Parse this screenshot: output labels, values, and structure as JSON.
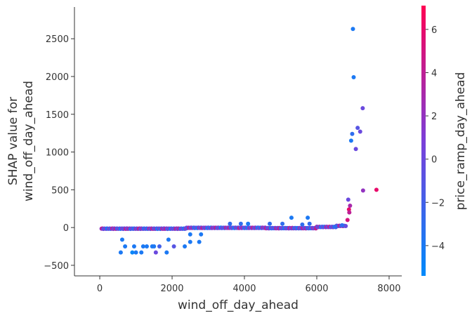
{
  "chart_data": {
    "type": "scatter",
    "title": "",
    "xlabel": "wind_off_day_ahead",
    "ylabel_lines": [
      "SHAP value for",
      "wind_off_day_ahead"
    ],
    "xlim": [
      -700,
      8350
    ],
    "ylim": [
      -640,
      2920
    ],
    "xticks": [
      0,
      2000,
      4000,
      6000,
      8000
    ],
    "xtick_labels": [
      "0",
      "2000",
      "4000",
      "6000",
      "8000"
    ],
    "yticks": [
      -500,
      0,
      500,
      1000,
      1500,
      2000,
      2500
    ],
    "ytick_labels": [
      "−500",
      "0",
      "500",
      "1000",
      "1500",
      "2000",
      "2500"
    ],
    "grid": false,
    "colorbar": {
      "label": "price_ramp_day_ahead",
      "range": [
        -5.4,
        7.1
      ],
      "ticks": [
        -4,
        -2,
        0,
        2,
        4,
        6
      ],
      "tick_labels": [
        "−4",
        "−2",
        "0",
        "2",
        "4",
        "6"
      ],
      "colors": [
        "#008afb",
        "#7b3fd9",
        "#ff0052"
      ]
    },
    "band": {
      "start": 50,
      "end": 6820,
      "step": 25,
      "segments": [
        [
          0,
          2400,
          -15
        ],
        [
          2400,
          4600,
          -4
        ],
        [
          4600,
          6000,
          -8
        ],
        [
          6000,
          6550,
          8
        ],
        [
          6550,
          6820,
          22
        ]
      ]
    },
    "points": [
      [
        580,
        -330,
        -4
      ],
      [
        620,
        -160,
        -4
      ],
      [
        700,
        -250,
        -4
      ],
      [
        900,
        -330,
        -5
      ],
      [
        950,
        -250,
        -4
      ],
      [
        1000,
        -330,
        -4
      ],
      [
        1150,
        -330,
        -4
      ],
      [
        1200,
        -250,
        -4
      ],
      [
        1300,
        -250,
        -4
      ],
      [
        1450,
        -250,
        -4
      ],
      [
        1500,
        -250,
        -4
      ],
      [
        1550,
        -330,
        0
      ],
      [
        1650,
        -250,
        -2
      ],
      [
        1850,
        -330,
        -4
      ],
      [
        1900,
        -160,
        -4
      ],
      [
        2050,
        -250,
        -1
      ],
      [
        2350,
        -250,
        -4
      ],
      [
        2500,
        -190,
        -4
      ],
      [
        2500,
        -90,
        -4
      ],
      [
        2750,
        -190,
        -4
      ],
      [
        2800,
        -90,
        -4
      ],
      [
        3600,
        50,
        -3
      ],
      [
        3900,
        50,
        -3
      ],
      [
        4100,
        50,
        -4
      ],
      [
        4700,
        50,
        -3
      ],
      [
        5050,
        50,
        -3
      ],
      [
        5300,
        130,
        -4
      ],
      [
        5600,
        40,
        -3
      ],
      [
        5750,
        130,
        -4
      ],
      [
        5800,
        50,
        -3
      ],
      [
        6500,
        10,
        -3
      ],
      [
        6700,
        30,
        -3
      ],
      [
        6850,
        100,
        5
      ],
      [
        6870,
        370,
        0
      ],
      [
        6890,
        240,
        6
      ],
      [
        6900,
        200,
        4
      ],
      [
        6920,
        290,
        3
      ],
      [
        6950,
        1150,
        -4
      ],
      [
        6980,
        1240,
        -3
      ],
      [
        7000,
        2630,
        -4
      ],
      [
        7020,
        1990,
        -4
      ],
      [
        7080,
        1040,
        0
      ],
      [
        7130,
        1320,
        -1
      ],
      [
        7200,
        1270,
        0
      ],
      [
        7270,
        1580,
        0
      ],
      [
        7280,
        490,
        2
      ],
      [
        7650,
        500,
        6
      ]
    ]
  }
}
